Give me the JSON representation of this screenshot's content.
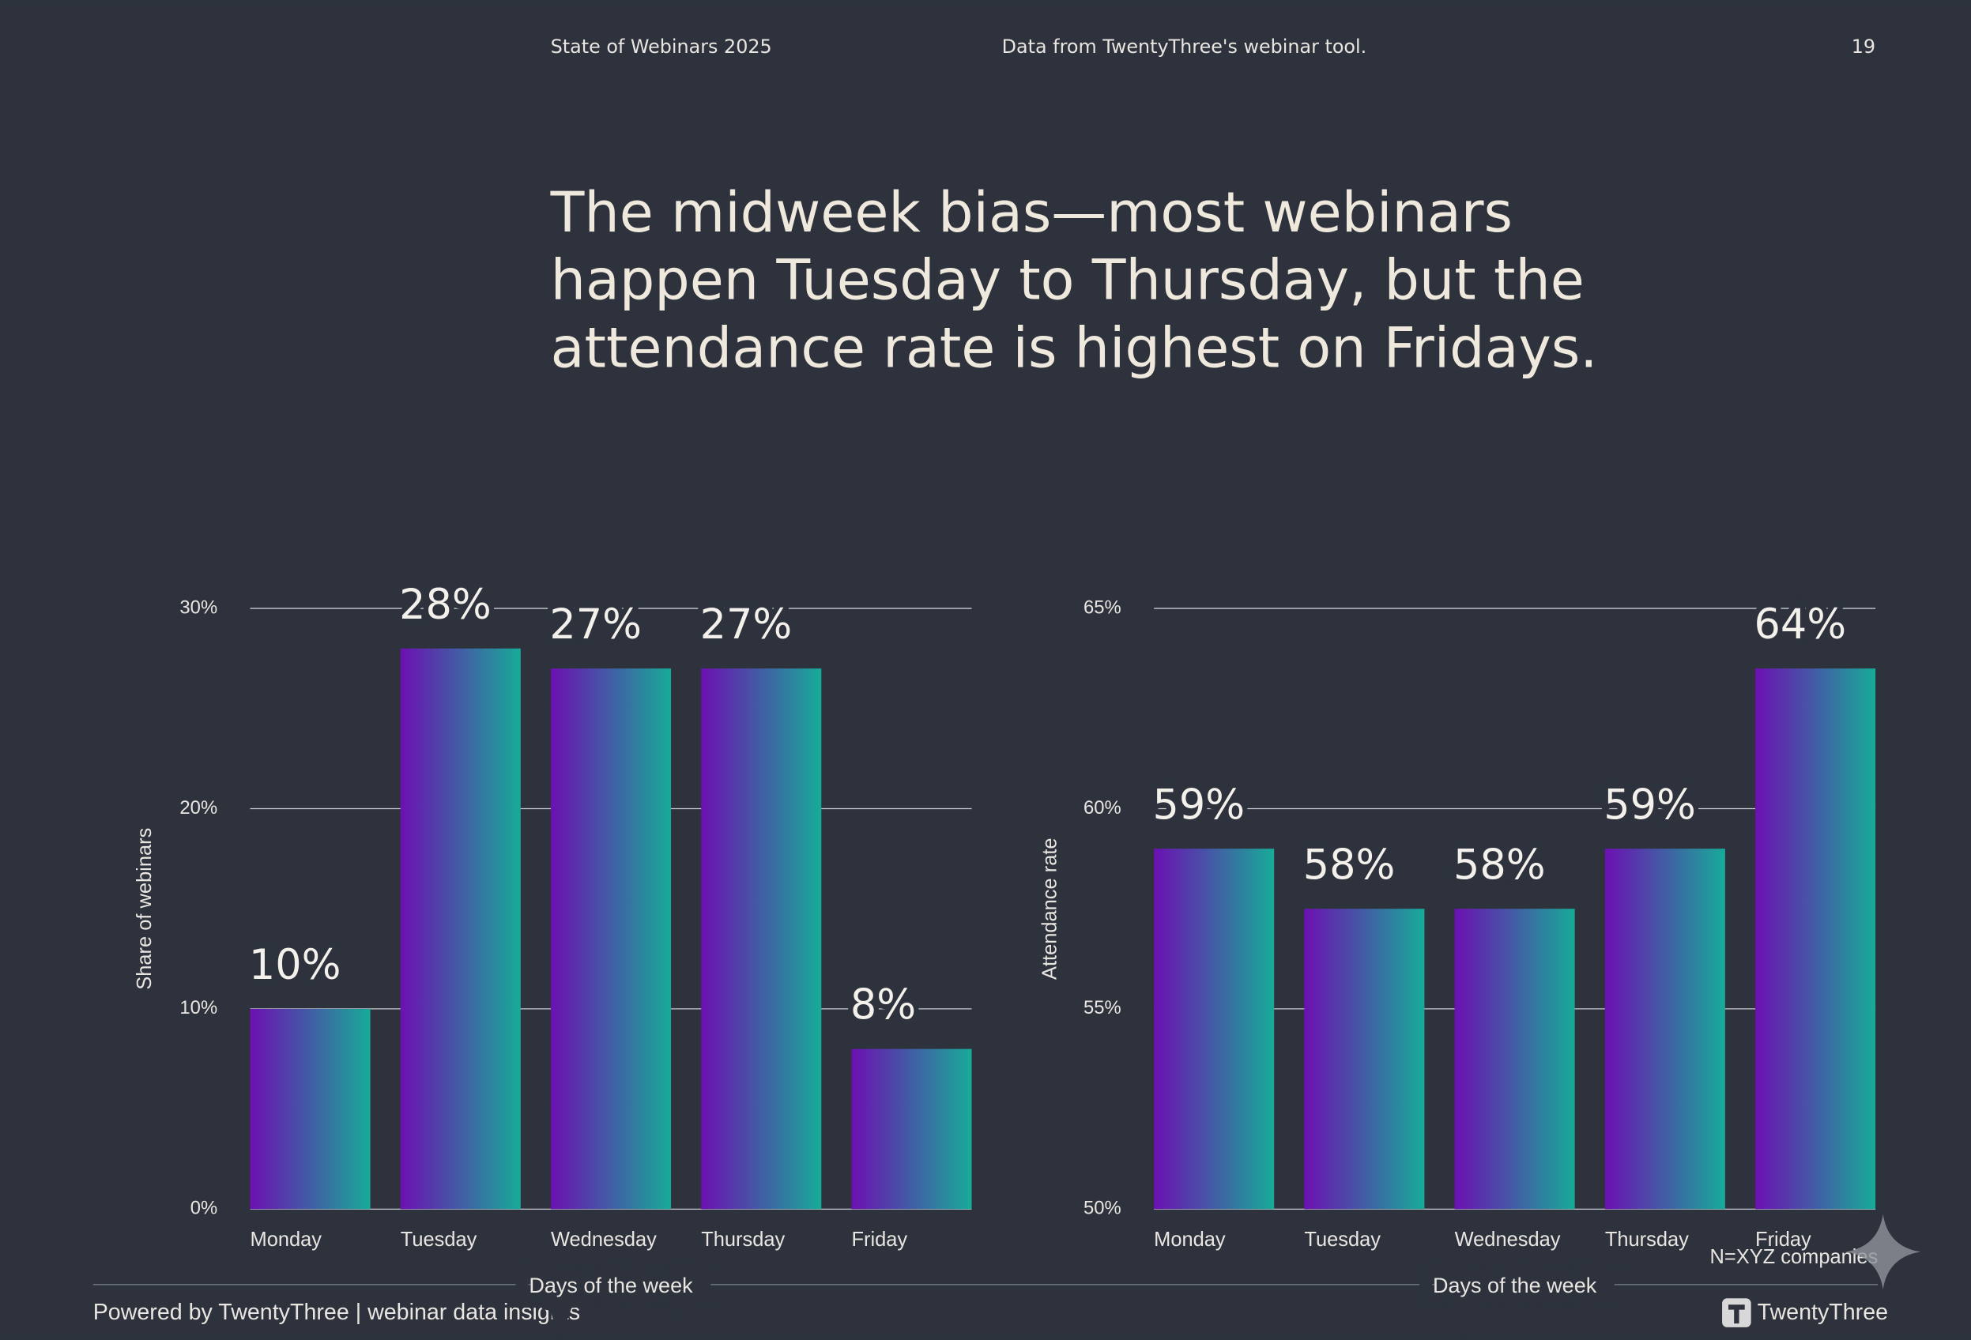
{
  "header": {
    "left": "State of Webinars 2025",
    "center": "Data from TwentyThree's webinar tool.",
    "page": "19"
  },
  "title": [
    "The midweek bias—most webinars",
    "happen Tuesday to Thursday, but the",
    "attendance rate is highest on Fridays."
  ],
  "chart_data": [
    {
      "type": "bar",
      "y_label": "Share of webinars",
      "x_label": "Days of the week",
      "categories": [
        "Monday",
        "Tuesday",
        "Wednesday",
        "Thursday",
        "Friday"
      ],
      "values": [
        10,
        28,
        27,
        27,
        8
      ],
      "value_labels": [
        "10%",
        "28%",
        "27%",
        "27%",
        "8%"
      ],
      "ylim": [
        0,
        30
      ],
      "yticks": [
        {
          "value": 0,
          "label": "0%"
        },
        {
          "value": 10,
          "label": "10%"
        },
        {
          "value": 20,
          "label": "20%"
        },
        {
          "value": 30,
          "label": "30%"
        }
      ],
      "grid": true,
      "gradient": [
        "#6c10b2",
        "#17ab98"
      ]
    },
    {
      "type": "bar",
      "y_label": "Attendance rate",
      "x_label": "Days of the week",
      "categories": [
        "Monday",
        "Tuesday",
        "Wednesday",
        "Thursday",
        "Friday"
      ],
      "values": [
        59,
        57.5,
        57.5,
        59,
        63.5
      ],
      "value_labels": [
        "59%",
        "58%",
        "58%",
        "59%",
        "64%"
      ],
      "ylim": [
        50,
        65
      ],
      "yticks": [
        {
          "value": 50,
          "label": "50%"
        },
        {
          "value": 55,
          "label": "55%"
        },
        {
          "value": 60,
          "label": "60%"
        },
        {
          "value": 65,
          "label": "65%"
        }
      ],
      "grid": true,
      "gradient": [
        "#6c10b2",
        "#17ab98"
      ]
    }
  ],
  "footer": {
    "left": "Powered by TwentyThree | webinar data insights",
    "note": "N=XYZ companies",
    "brand": "TwentyThree"
  }
}
